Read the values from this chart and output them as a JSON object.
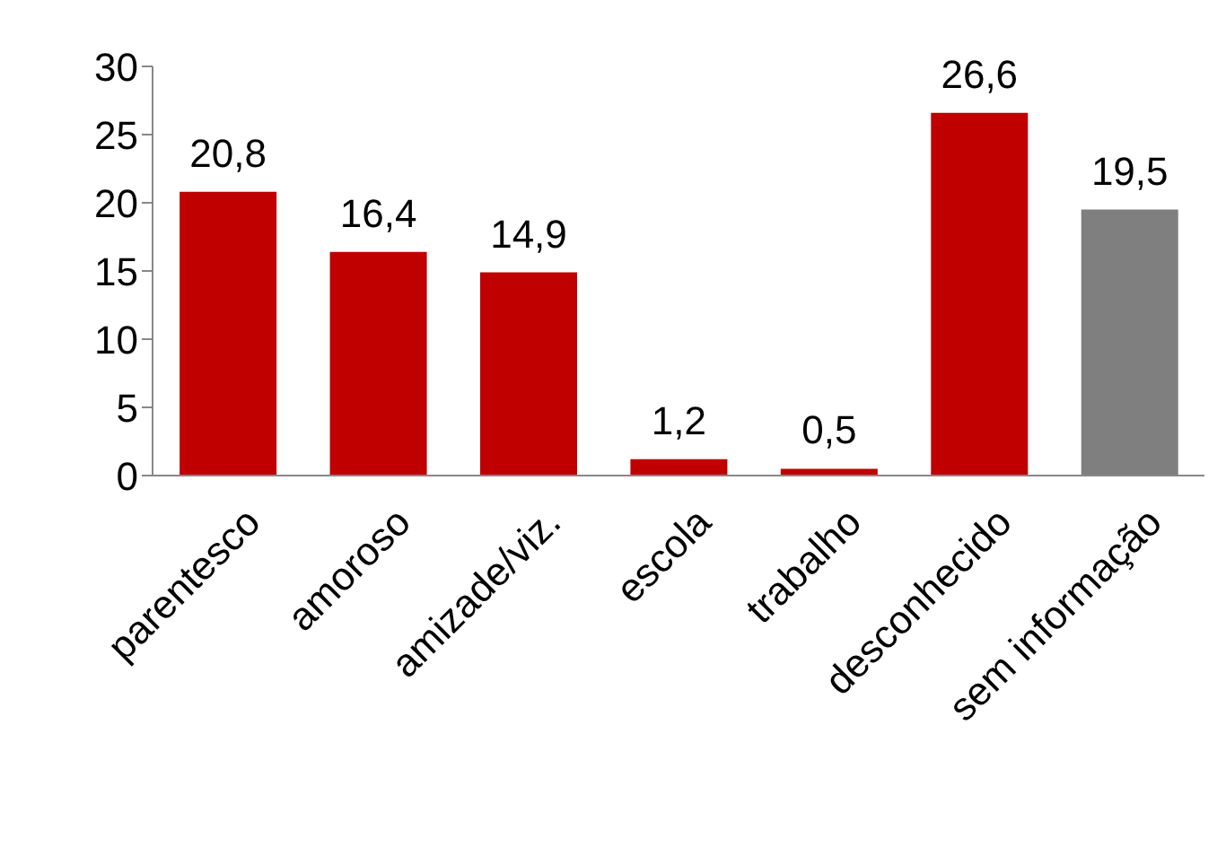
{
  "chart_data": {
    "type": "bar",
    "categories": [
      "parentesco",
      "amoroso",
      "amizade/viz.",
      "escola",
      "trabalho",
      "desconhecido",
      "sem informação"
    ],
    "values": [
      20.8,
      16.4,
      14.9,
      1.2,
      0.5,
      26.6,
      19.5
    ],
    "colors": [
      "#c00000",
      "#c00000",
      "#c00000",
      "#c00000",
      "#c00000",
      "#c00000",
      "#7f7f7f"
    ],
    "value_labels": [
      "20,8",
      "16,4",
      "14,9",
      "1,2",
      "0,5",
      "26,6",
      "19,5"
    ],
    "ylim": [
      0,
      30
    ],
    "yticks": [
      0,
      5,
      10,
      15,
      20,
      25,
      30
    ],
    "grid": false,
    "legend": false
  }
}
